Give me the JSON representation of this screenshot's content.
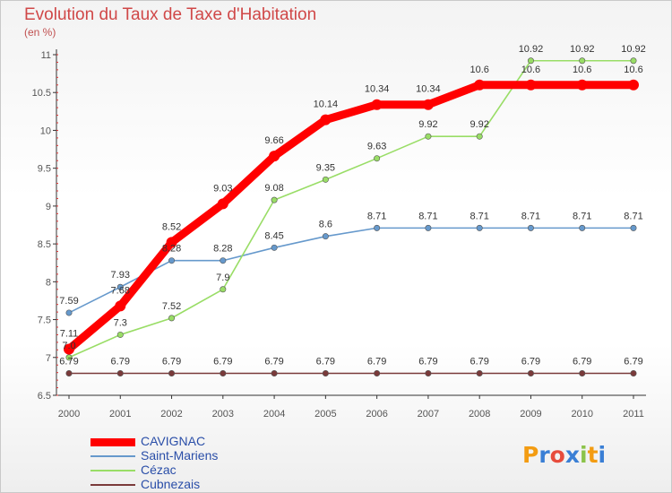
{
  "chart_data": {
    "type": "line",
    "title": "Evolution du Taux de Taxe d'Habitation",
    "ylabel": "(en %)",
    "xlabel": "",
    "x": [
      "2000",
      "2001",
      "2002",
      "2003",
      "2004",
      "2005",
      "2006",
      "2007",
      "2008",
      "2009",
      "2010",
      "2011"
    ],
    "ylim": [
      6.5,
      11
    ],
    "yticks": [
      "6.5",
      "7",
      "7.5",
      "8",
      "8.5",
      "9",
      "9.5",
      "10",
      "10.5",
      "11"
    ],
    "grid": false,
    "legend_position": "bottom-left",
    "series": [
      {
        "name": "CAVIGNAC",
        "color": "#ff0000",
        "width": "thick",
        "values": [
          7.11,
          7.68,
          8.52,
          9.03,
          9.66,
          10.14,
          10.34,
          10.34,
          10.6,
          10.6,
          10.6,
          10.6
        ],
        "labels": [
          "7.11",
          "7.68",
          "8.52",
          "9.03",
          "9.66",
          "10.14",
          "10.34",
          "10.34",
          "10.6",
          "10.6",
          "10.6",
          "10.6"
        ]
      },
      {
        "name": "Saint-Mariens",
        "color": "#6699cc",
        "width": "thin",
        "values": [
          7.59,
          7.93,
          8.28,
          8.28,
          8.45,
          8.6,
          8.71,
          8.71,
          8.71,
          8.71,
          8.71,
          8.71
        ],
        "labels": [
          "7.59",
          "7.93",
          "8.28",
          "8.28",
          "8.45",
          "8.6",
          "8.71",
          "8.71",
          "8.71",
          "8.71",
          "8.71",
          "8.71"
        ]
      },
      {
        "name": "Cézac",
        "color": "#99dd66",
        "width": "thin",
        "values": [
          7.0,
          7.3,
          7.52,
          7.9,
          9.08,
          9.35,
          9.63,
          9.92,
          9.92,
          10.92,
          10.92,
          10.92
        ],
        "labels": [
          "7.0",
          "7.3",
          "7.52",
          "7.9",
          "9.08",
          "9.35",
          "9.63",
          "9.92",
          "9.92",
          "10.92",
          "10.92",
          "10.92"
        ]
      },
      {
        "name": "Cubnezais",
        "color": "#7a3a3a",
        "width": "thin",
        "values": [
          6.79,
          6.79,
          6.79,
          6.79,
          6.79,
          6.79,
          6.79,
          6.79,
          6.79,
          6.79,
          6.79,
          6.79
        ],
        "labels": [
          "6.79",
          "6.79",
          "6.79",
          "6.79",
          "6.79",
          "6.79",
          "6.79",
          "6.79",
          "6.79",
          "6.79",
          "6.79",
          "6.79"
        ]
      }
    ]
  },
  "logo": {
    "text": "Proxiti"
  }
}
